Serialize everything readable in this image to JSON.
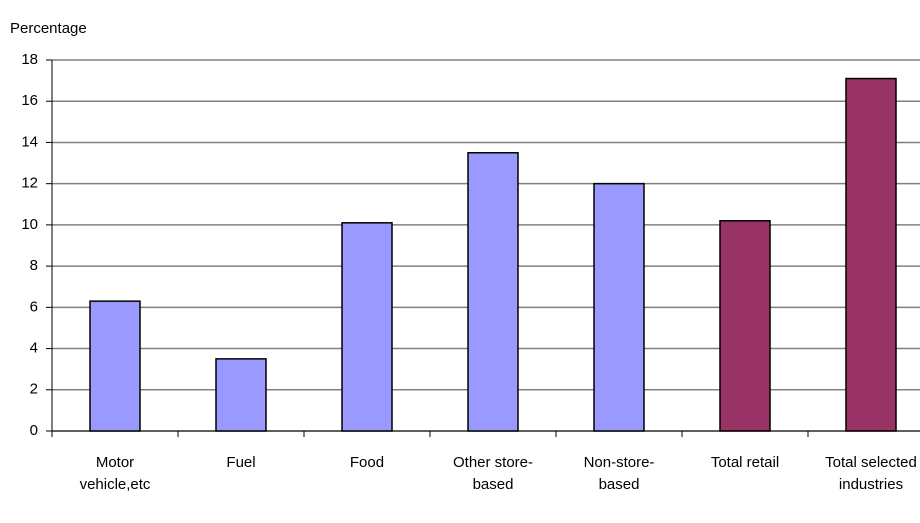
{
  "chart_data": {
    "type": "bar",
    "y_label": "Percentage",
    "categories": [
      "Motor vehicle,etc",
      "Fuel",
      "Food",
      "Other store-based",
      "Non-store-based",
      "Total retail",
      "Total selected industries"
    ],
    "values": [
      6.3,
      3.5,
      10.1,
      13.5,
      12.0,
      10.2,
      17.1
    ],
    "colors": [
      "#9999ff",
      "#9999ff",
      "#9999ff",
      "#9999ff",
      "#9999ff",
      "#993366",
      "#993366"
    ],
    "ylim": [
      0,
      18
    ],
    "yticks": [
      0,
      2,
      4,
      6,
      8,
      10,
      12,
      14,
      16,
      18
    ],
    "grid": true
  }
}
